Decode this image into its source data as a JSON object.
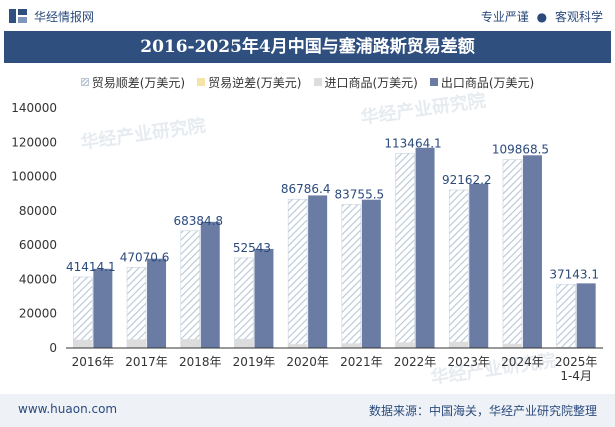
{
  "header": {
    "brand": "华经情报网",
    "slogan_left": "专业严谨",
    "slogan_dot": "●",
    "slogan_right": "客观科学"
  },
  "title": "2016-2025年4月中国与塞浦路斯贸易差额",
  "legend": {
    "surplus": "贸易顺差(万美元)",
    "deficit": "贸易逆差(万美元)",
    "import": "进口商品(万美元)",
    "export": "出口商品(万美元)"
  },
  "watermark": "华经产业研究院",
  "footer": {
    "site": "www.huaon.com",
    "source": "数据来源：中国海关，华经产业研究院整理"
  },
  "colors": {
    "surplus_stripe": "#b8c6d6",
    "import": "#dcdcdc",
    "export": "#6a7ca3",
    "header_bg": "#2f4f7f"
  },
  "chart_data": {
    "type": "bar",
    "categories": [
      "2016年",
      "2017年",
      "2018年",
      "2019年",
      "2020年",
      "2021年",
      "2022年",
      "2023年",
      "2024年",
      "2025年\n1-4月"
    ],
    "series": [
      {
        "name": "贸易顺差(万美元)",
        "values": [
          41414.1,
          47070.6,
          68384.8,
          52543,
          86786.4,
          83755.5,
          113464.1,
          92162.2,
          109868.5,
          37143.1
        ]
      },
      {
        "name": "贸易逆差(万美元)",
        "values": [
          0,
          0,
          0,
          0,
          0,
          0,
          0,
          0,
          0,
          0
        ]
      },
      {
        "name": "进口商品(万美元)",
        "values": [
          4800,
          5000,
          5200,
          5300,
          2200,
          2700,
          3300,
          3600,
          2500,
          600
        ]
      },
      {
        "name": "出口商品(万美元)",
        "values": [
          46200,
          52100,
          73600,
          57800,
          89000,
          86500,
          116800,
          95800,
          112400,
          37700
        ]
      }
    ],
    "data_labels": [
      "41414.1",
      "47070.6",
      "68384.8",
      "52543",
      "86786.4",
      "83755.5",
      "113464.1",
      "92162.2",
      "109868.5",
      "37143.1"
    ],
    "yticks": [
      "0",
      "20000",
      "40000",
      "60000",
      "80000",
      "100000",
      "120000",
      "140000"
    ],
    "ylim": [
      0,
      140000
    ],
    "grid": false,
    "legend_position": "top"
  }
}
